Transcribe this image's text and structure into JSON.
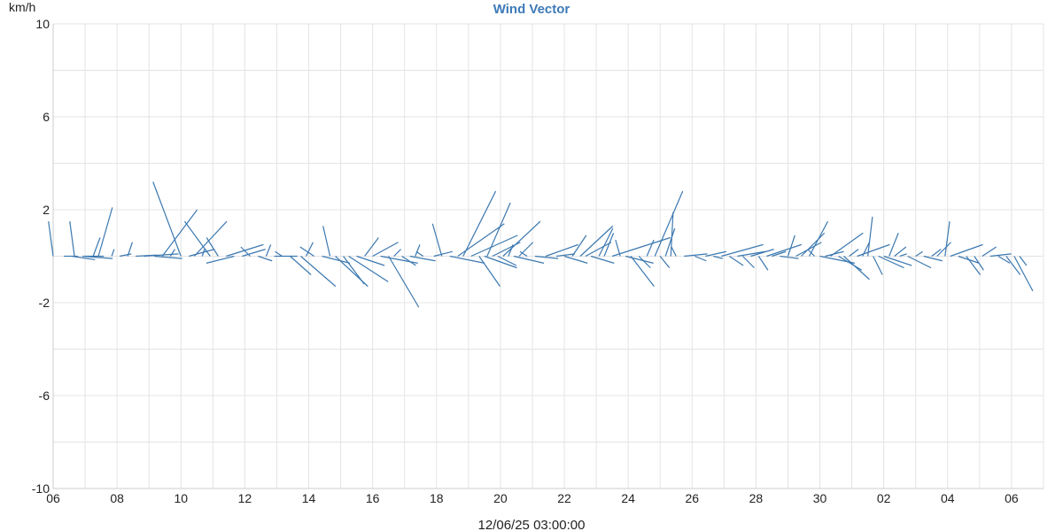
{
  "chart_data": {
    "type": "wind-vector",
    "title": "Wind Vector",
    "ylabel": "km/h",
    "xlabel": "12/06/25 03:00:00",
    "ylim": [
      -10,
      10
    ],
    "y_ticks": [
      10,
      6,
      2,
      -2,
      -6,
      -10
    ],
    "y_grid_step": 2,
    "x_ticks": [
      "06",
      "08",
      "10",
      "12",
      "14",
      "16",
      "18",
      "20",
      "22",
      "24",
      "26",
      "28",
      "30",
      "02",
      "04",
      "06"
    ],
    "x_tick_positions_hours": [
      0,
      48,
      96,
      144,
      192,
      240,
      288,
      336,
      384,
      432,
      480,
      528,
      576,
      624,
      672,
      720
    ],
    "x_range_hours": [
      0,
      744
    ],
    "grid": true,
    "color": "#3b78b0",
    "vectors": [
      [
        0,
        -0.2,
        1.5
      ],
      [
        8,
        0.6,
        0.0
      ],
      [
        14,
        1.0,
        -0.15
      ],
      [
        16,
        -0.2,
        1.5
      ],
      [
        22,
        1.3,
        -0.1
      ],
      [
        30,
        0.3,
        0.8
      ],
      [
        34,
        0.6,
        2.1
      ],
      [
        38,
        -0.8,
        0.0
      ],
      [
        44,
        0.1,
        0.3
      ],
      [
        50,
        0.5,
        0.1
      ],
      [
        56,
        0.2,
        0.6
      ],
      [
        62,
        0.9,
        0.05
      ],
      [
        68,
        1.5,
        0.1
      ],
      [
        76,
        1.2,
        -0.1
      ],
      [
        82,
        1.5,
        2.0
      ],
      [
        88,
        0.2,
        0.3
      ],
      [
        96,
        -1.2,
        3.2
      ],
      [
        102,
        1.1,
        0.3
      ],
      [
        106,
        1.4,
        1.5
      ],
      [
        112,
        0.1,
        0.3
      ],
      [
        118,
        -1.1,
        1.5
      ],
      [
        124,
        -0.5,
        0.8
      ],
      [
        130,
        1.6,
        0.5
      ],
      [
        136,
        -1.2,
        -0.3
      ],
      [
        142,
        1.0,
        0.3
      ],
      [
        148,
        -0.4,
        0.4
      ],
      [
        154,
        0.6,
        -0.2
      ],
      [
        160,
        0.2,
        0.5
      ],
      [
        166,
        1.0,
        0.0
      ],
      [
        172,
        -0.3,
        0.2
      ],
      [
        178,
        0.9,
        -0.8
      ],
      [
        186,
        1.5,
        -1.3
      ],
      [
        190,
        0.3,
        0.6
      ],
      [
        196,
        -0.6,
        0.4
      ],
      [
        202,
        1.2,
        -0.3
      ],
      [
        208,
        -0.3,
        1.3
      ],
      [
        212,
        1.4,
        -1.3
      ],
      [
        218,
        0.9,
        -1.2
      ],
      [
        222,
        1.7,
        -1.1
      ],
      [
        228,
        1.2,
        -0.4
      ],
      [
        234,
        0.6,
        0.8
      ],
      [
        240,
        1.1,
        0.6
      ],
      [
        246,
        1.6,
        -0.3
      ],
      [
        252,
        1.3,
        -2.2
      ],
      [
        256,
        0.3,
        0.3
      ],
      [
        262,
        0.6,
        -0.4
      ],
      [
        268,
        1.1,
        -0.2
      ],
      [
        272,
        0.2,
        0.5
      ],
      [
        278,
        -0.3,
        0.2
      ],
      [
        286,
        0.8,
        0.2
      ],
      [
        292,
        -0.4,
        1.4
      ],
      [
        298,
        1.5,
        -0.3
      ],
      [
        304,
        2.0,
        1.4
      ],
      [
        308,
        1.4,
        2.8
      ],
      [
        314,
        2.0,
        0.9
      ],
      [
        320,
        0.9,
        -1.3
      ],
      [
        324,
        1.4,
        -0.5
      ],
      [
        326,
        1.0,
        2.3
      ],
      [
        330,
        1.2,
        0.6
      ],
      [
        334,
        0.8,
        -0.4
      ],
      [
        338,
        1.6,
        1.5
      ],
      [
        342,
        0.2,
        0.5
      ],
      [
        346,
        1.3,
        -0.3
      ],
      [
        350,
        0.6,
        0.6
      ],
      [
        356,
        -0.3,
        0.2
      ],
      [
        362,
        1.0,
        -0.1
      ],
      [
        370,
        1.4,
        0.5
      ],
      [
        378,
        0.8,
        0.1
      ],
      [
        384,
        1.0,
        -0.3
      ],
      [
        390,
        0.6,
        0.9
      ],
      [
        396,
        1.4,
        1.3
      ],
      [
        400,
        1.1,
        0.6
      ],
      [
        404,
        1.0,
        -0.3
      ],
      [
        410,
        0.6,
        1.2
      ],
      [
        414,
        0.4,
        1.0
      ],
      [
        420,
        2.5,
        0.8
      ],
      [
        426,
        -0.2,
        0.7
      ],
      [
        430,
        1.2,
        -0.3
      ],
      [
        434,
        1.0,
        -1.3
      ],
      [
        440,
        0.5,
        -0.5
      ],
      [
        446,
        0.3,
        0.7
      ],
      [
        452,
        1.2,
        2.8
      ],
      [
        456,
        0.4,
        -0.5
      ],
      [
        460,
        0.4,
        1.2
      ],
      [
        464,
        0.1,
        1.9
      ],
      [
        468,
        -0.2,
        0.4
      ],
      [
        474,
        1.0,
        0.1
      ],
      [
        482,
        0.5,
        -0.2
      ],
      [
        490,
        0.9,
        0.2
      ],
      [
        496,
        0.4,
        -0.1
      ],
      [
        502,
        1.8,
        0.5
      ],
      [
        508,
        0.6,
        -0.4
      ],
      [
        514,
        1.2,
        0.2
      ],
      [
        518,
        0.5,
        -0.5
      ],
      [
        524,
        1.0,
        0.3
      ],
      [
        530,
        0.4,
        -0.6
      ],
      [
        536,
        1.5,
        0.5
      ],
      [
        540,
        0.6,
        0.2
      ],
      [
        546,
        0.8,
        -0.1
      ],
      [
        552,
        0.3,
        0.9
      ],
      [
        558,
        1.1,
        0.6
      ],
      [
        562,
        1.0,
        1.0
      ],
      [
        568,
        0.8,
        1.5
      ],
      [
        572,
        -0.3,
        0.3
      ],
      [
        576,
        1.5,
        -0.3
      ],
      [
        580,
        0.8,
        0.2
      ],
      [
        584,
        1.4,
        1.0
      ],
      [
        590,
        1.0,
        -0.6
      ],
      [
        594,
        1.1,
        -1.0
      ],
      [
        598,
        0.4,
        0.3
      ],
      [
        604,
        1.4,
        0.5
      ],
      [
        608,
        0.3,
        0.6
      ],
      [
        612,
        0.2,
        1.7
      ],
      [
        616,
        0.4,
        -0.8
      ],
      [
        620,
        1.1,
        -0.5
      ],
      [
        624,
        1.2,
        -0.4
      ],
      [
        628,
        0.4,
        1.0
      ],
      [
        632,
        0.5,
        0.4
      ],
      [
        636,
        0.3,
        0.1
      ],
      [
        642,
        1.0,
        -0.5
      ],
      [
        648,
        0.3,
        0.2
      ],
      [
        654,
        0.8,
        -0.2
      ],
      [
        660,
        0.4,
        0.3
      ],
      [
        664,
        0.6,
        0.6
      ],
      [
        670,
        0.2,
        1.5
      ],
      [
        674,
        1.4,
        0.5
      ],
      [
        680,
        0.9,
        -0.3
      ],
      [
        686,
        0.6,
        -0.8
      ],
      [
        692,
        0.4,
        -0.6
      ],
      [
        698,
        0.6,
        0.4
      ],
      [
        704,
        0.9,
        0.1
      ],
      [
        710,
        0.5,
        -0.3
      ],
      [
        716,
        0.6,
        -0.8
      ],
      [
        722,
        0.8,
        -1.5
      ],
      [
        726,
        0.3,
        -0.4
      ]
    ]
  }
}
